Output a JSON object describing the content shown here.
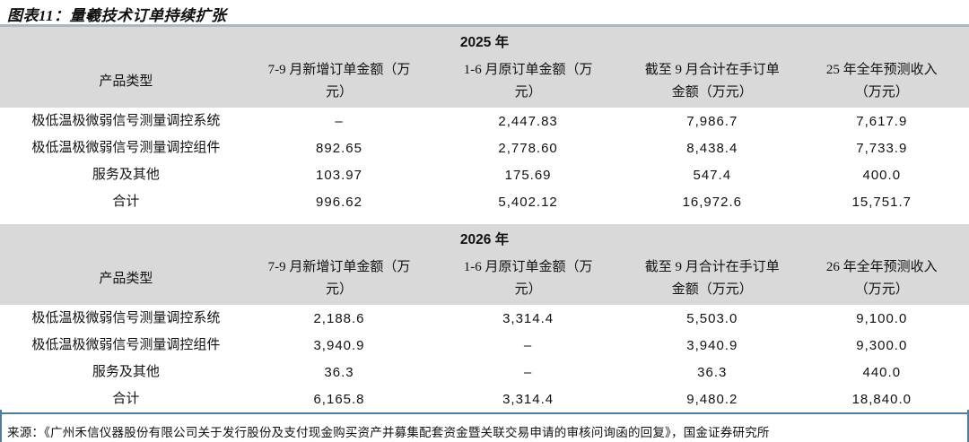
{
  "title": "图表11：量羲技术订单持续扩张",
  "colors": {
    "header_band_gray": "#d9d9d9",
    "rule_top_blue": "#a3bac8",
    "rule_bottom_blue": "#4e7e9e",
    "text": "#111111"
  },
  "table": {
    "sections": [
      {
        "year": "2025 年",
        "columns": [
          "产品类型",
          "7-9 月新增订单金额（万元）",
          "1-6 月原订单金额（万元）",
          "截至 9 月合计在手订单金额（万元）",
          "25 年全年预测收入（万元）"
        ],
        "rows": [
          [
            "极低温极微弱信号测量调控系统",
            "–",
            "2,447.83",
            "7,986.7",
            "7,617.9"
          ],
          [
            "极低温极微弱信号测量调控组件",
            "892.65",
            "2,778.60",
            "8,438.4",
            "7,733.9"
          ],
          [
            "服务及其他",
            "103.97",
            "175.69",
            "547.4",
            "400.0"
          ],
          [
            "合计",
            "996.62",
            "5,402.12",
            "16,972.6",
            "15,751.7"
          ]
        ]
      },
      {
        "year": "2026 年",
        "columns": [
          "产品类型",
          "7-9 月新增订单金额（万元）",
          "1-6 月原订单金额（万元）",
          "截至 9 月合计在手订单金额（万元）",
          "26 年全年预测收入（万元）"
        ],
        "rows": [
          [
            "极低温极微弱信号测量调控系统",
            "2,188.6",
            "3,314.4",
            "5,503.0",
            "9,100.0"
          ],
          [
            "极低温极微弱信号测量调控组件",
            "3,940.9",
            "–",
            "3,940.9",
            "9,300.0"
          ],
          [
            "服务及其他",
            "36.3",
            "–",
            "36.3",
            "440.0"
          ],
          [
            "合计",
            "6,165.8",
            "3,314.4",
            "9,480.2",
            "18,840.0"
          ]
        ]
      }
    ]
  },
  "footer": {
    "source": "来源：《广州禾信仪器股份有限公司关于发行股份及支付现金购买资产并募集配套资金暨关联交易申请的审核问询函的回复》，国金证券研究所"
  }
}
